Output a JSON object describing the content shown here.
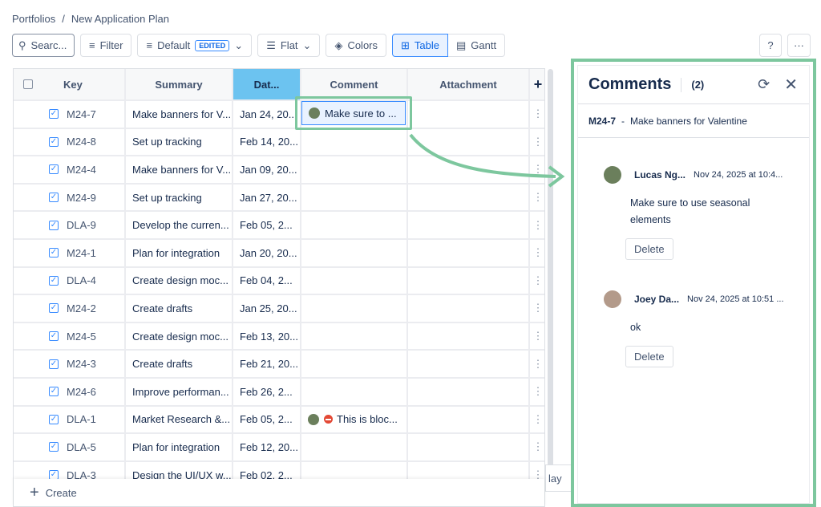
{
  "breadcrumb": [
    "Portfolios",
    "New Application Plan"
  ],
  "toolbar": {
    "search_placeholder": "Searc...",
    "filter": "Filter",
    "default": "Default",
    "edited": "EDITED",
    "flat": "Flat",
    "colors": "Colors",
    "table": "Table",
    "gantt": "Gantt",
    "help": "?",
    "more": "···"
  },
  "table": {
    "headers": [
      "Key",
      "Summary",
      "Dat...",
      "Comment",
      "Attachment",
      "+"
    ],
    "rows": [
      {
        "key": "M24-7",
        "summary": "Make banners for V...",
        "date": "Jan 24, 20...",
        "comment": "Make sure to ..."
      },
      {
        "key": "M24-8",
        "summary": "Set up tracking",
        "date": "Feb 14, 20...",
        "comment": ""
      },
      {
        "key": "M24-4",
        "summary": "Make banners for V...",
        "date": "Jan 09, 20...",
        "comment": ""
      },
      {
        "key": "M24-9",
        "summary": "Set up tracking",
        "date": "Jan 27, 20...",
        "comment": ""
      },
      {
        "key": "DLA-9",
        "summary": "Develop the curren...",
        "date": "Feb 05, 2...",
        "comment": ""
      },
      {
        "key": "M24-1",
        "summary": "Plan for integration",
        "date": "Jan 20, 20...",
        "comment": ""
      },
      {
        "key": "DLA-4",
        "summary": "Create design moc...",
        "date": "Feb 04, 2...",
        "comment": ""
      },
      {
        "key": "M24-2",
        "summary": "Create drafts",
        "date": "Jan 25, 20...",
        "comment": ""
      },
      {
        "key": "M24-5",
        "summary": "Create design moc...",
        "date": "Feb 13, 20...",
        "comment": ""
      },
      {
        "key": "M24-3",
        "summary": "Create drafts",
        "date": "Feb 21, 20...",
        "comment": ""
      },
      {
        "key": "M24-6",
        "summary": "Improve performan...",
        "date": "Feb 26, 2...",
        "comment": ""
      },
      {
        "key": "DLA-1",
        "summary": "Market Research &...",
        "date": "Feb 05, 2...",
        "comment": "This is bloc..."
      },
      {
        "key": "DLA-5",
        "summary": "Plan for integration",
        "date": "Feb 12, 20...",
        "comment": ""
      },
      {
        "key": "DLA-3",
        "summary": "Design the UI/UX w...",
        "date": "Feb 02, 2...",
        "comment": ""
      }
    ]
  },
  "create_label": "Create",
  "today_label": "lay",
  "panel": {
    "title": "Comments",
    "count": "(2)",
    "issue_key": "M24-7",
    "issue_sep": "-",
    "issue_title": "Make banners for Valentine",
    "comments": [
      {
        "author": "Lucas Ng...",
        "time": "Nov 24, 2025 at 10:4...",
        "text": "Make sure to use seasonal elements",
        "delete": "Delete"
      },
      {
        "author": "Joey Da...",
        "time": "Nov 24, 2025 at 10:51 ...",
        "text": "ok",
        "delete": "Delete"
      }
    ]
  },
  "colors": {
    "highlight": "#7dc79e",
    "accent": "#0c66e4",
    "date_header": "#6cc3f0"
  }
}
